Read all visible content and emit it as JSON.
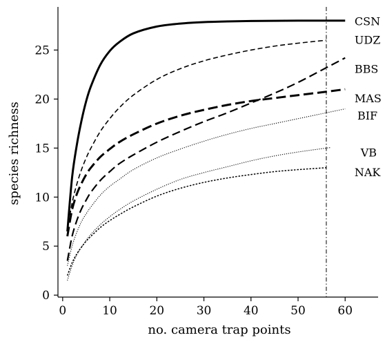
{
  "chart_data": {
    "type": "line",
    "xlabel": "no. camera trap points",
    "ylabel": "species richness",
    "xlim": [
      -1,
      67
    ],
    "ylim": [
      -0.2,
      29.4
    ],
    "xticks": [
      0,
      10,
      20,
      30,
      40,
      50,
      60
    ],
    "yticks": [
      0,
      5,
      10,
      15,
      20,
      25
    ],
    "reference_line": {
      "x": 56,
      "style": "dash-dot"
    },
    "grid": false,
    "legend": "none (labels at line ends)",
    "series": [
      {
        "name": "CSN",
        "style": "solid-thick",
        "x": [
          1,
          2,
          3,
          4,
          5,
          6,
          8,
          10,
          12,
          15,
          20,
          25,
          30,
          35,
          40,
          45,
          50,
          55,
          60
        ],
        "y": [
          6.5,
          12.0,
          15.3,
          17.8,
          19.8,
          21.3,
          23.5,
          24.9,
          25.8,
          26.7,
          27.4,
          27.7,
          27.85,
          27.92,
          27.96,
          27.98,
          28.0,
          28.0,
          28.0
        ]
      },
      {
        "name": "UDZ",
        "style": "dashed",
        "x": [
          1,
          2,
          3,
          4,
          5,
          6,
          8,
          10,
          12,
          15,
          20,
          25,
          30,
          35,
          40,
          45,
          50,
          56
        ],
        "y": [
          6.6,
          9.4,
          11.3,
          12.8,
          14.0,
          15.0,
          16.7,
          18.0,
          19.1,
          20.4,
          22.0,
          23.1,
          23.9,
          24.5,
          25.0,
          25.4,
          25.7,
          26.0
        ]
      },
      {
        "name": "BBS",
        "style": "long-dash",
        "x": [
          1,
          2,
          3,
          4,
          5,
          6,
          8,
          10,
          12,
          15,
          20,
          25,
          30,
          35,
          40,
          45,
          50,
          56,
          60
        ],
        "y": [
          3.5,
          6.0,
          7.6,
          8.8,
          9.7,
          10.5,
          11.7,
          12.6,
          13.4,
          14.3,
          15.6,
          16.7,
          17.7,
          18.6,
          19.6,
          20.6,
          21.7,
          23.2,
          24.2
        ]
      },
      {
        "name": "MAS",
        "style": "long-dash-thick",
        "x": [
          1,
          2,
          3,
          4,
          5,
          6,
          8,
          10,
          12,
          15,
          20,
          25,
          30,
          35,
          40,
          45,
          50,
          56,
          60
        ],
        "y": [
          6.0,
          8.7,
          10.3,
          11.4,
          12.3,
          13.0,
          14.1,
          14.9,
          15.6,
          16.4,
          17.5,
          18.3,
          18.9,
          19.4,
          19.8,
          20.1,
          20.4,
          20.75,
          21.0
        ]
      },
      {
        "name": "BIF",
        "style": "fine-dotted",
        "x": [
          1,
          2,
          3,
          4,
          5,
          6,
          8,
          10,
          12,
          15,
          20,
          25,
          30,
          35,
          40,
          45,
          50,
          56,
          60
        ],
        "y": [
          3.0,
          5.0,
          6.4,
          7.5,
          8.3,
          9.0,
          10.2,
          11.1,
          11.8,
          12.8,
          14.0,
          14.9,
          15.7,
          16.4,
          17.0,
          17.5,
          18.0,
          18.6,
          19.0
        ]
      },
      {
        "name": "VB",
        "style": "fine-dotted",
        "x": [
          1,
          2,
          3,
          4,
          5,
          6,
          8,
          10,
          12,
          15,
          20,
          25,
          30,
          35,
          40,
          45,
          50,
          56,
          57
        ],
        "y": [
          1.5,
          3.0,
          4.1,
          4.9,
          5.6,
          6.2,
          7.2,
          8.0,
          8.7,
          9.6,
          10.8,
          11.8,
          12.5,
          13.1,
          13.7,
          14.2,
          14.6,
          15.0,
          15.05
        ]
      },
      {
        "name": "NAK",
        "style": "dotted",
        "x": [
          1,
          2,
          3,
          4,
          5,
          6,
          8,
          10,
          12,
          15,
          20,
          25,
          30,
          35,
          40,
          45,
          50,
          56
        ],
        "y": [
          2.0,
          3.3,
          4.2,
          4.9,
          5.5,
          6.0,
          6.9,
          7.6,
          8.2,
          9.0,
          10.1,
          10.9,
          11.5,
          11.95,
          12.3,
          12.6,
          12.8,
          13.0
        ]
      }
    ],
    "series_labels": [
      "CSN",
      "UDZ",
      "BBS",
      "MAS",
      "BIF",
      "VB",
      "NAK"
    ]
  }
}
